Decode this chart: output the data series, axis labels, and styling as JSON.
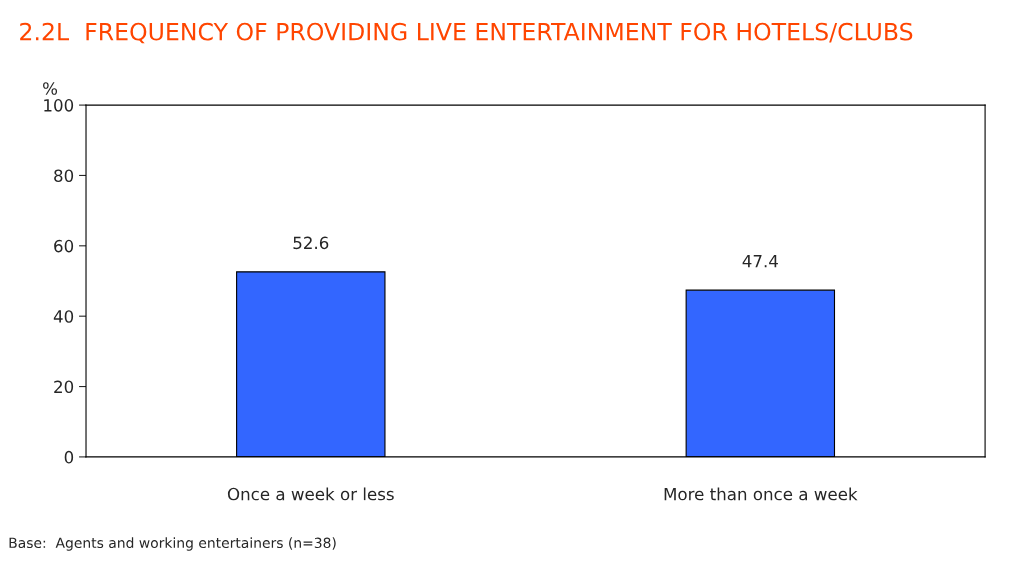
{
  "chart_data": {
    "type": "bar",
    "title": "2.2L  FREQUENCY OF PROVIDING LIVE ENTERTAINMENT FOR HOTELS/CLUBS",
    "ylabel": "%",
    "categories": [
      "Once a week or less",
      "More than once a week"
    ],
    "values": [
      52.6,
      47.4
    ],
    "color": "#3366ff",
    "data_labels": true,
    "ylim": [
      0,
      100
    ],
    "yticks": [
      0,
      20,
      40,
      60,
      80,
      100
    ],
    "grid": false,
    "annotations": [
      "Base:  Agents and working entertainers (n=38)"
    ]
  }
}
